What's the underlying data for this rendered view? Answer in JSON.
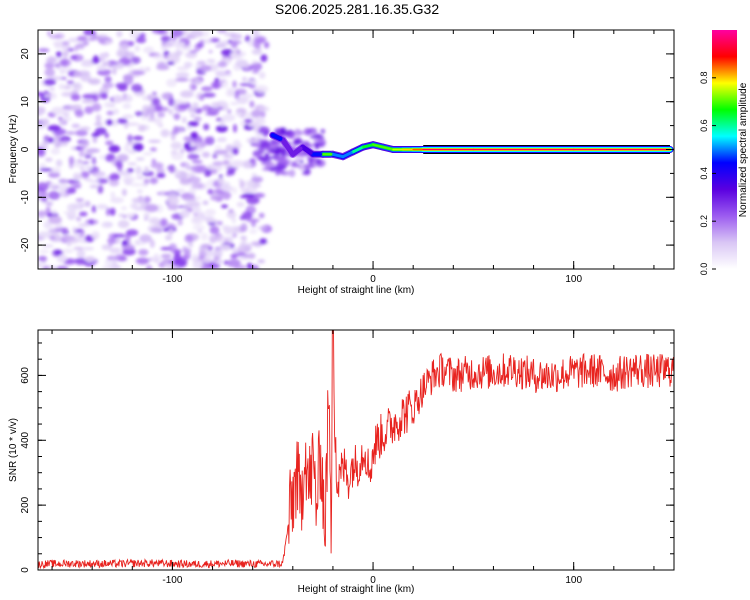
{
  "page": {
    "title": "S206.2025.281.16.35.G32"
  },
  "colors": {
    "snr_line": "#e8231f",
    "axis": "#000000",
    "colormap": [
      "#ffffff",
      "#d9c6f5",
      "#9c5cf0",
      "#5a00e0",
      "#0000ff",
      "#00ffff",
      "#00ff00",
      "#ffff00",
      "#ff0000",
      "#ff00a0"
    ]
  },
  "chart_data": [
    {
      "type": "heatmap",
      "title": "S206.2025.281.16.35.G32",
      "xlabel": "Height of straight line (km)",
      "ylabel": "Frequency (Hz)",
      "xlim": [
        -167,
        150
      ],
      "ylim": [
        -25,
        25
      ],
      "xticks": [
        -100,
        0,
        100
      ],
      "yticks": [
        -20,
        -10,
        0,
        10,
        20
      ],
      "x_tick_labels": [
        "-100",
        "0",
        "100"
      ],
      "y_tick_labels": [
        "-20",
        "-10",
        "0",
        "10",
        "20"
      ],
      "noise_region_km": [
        -167,
        -53
      ],
      "ridge": {
        "description_points_km_hz_amp": [
          [
            -50,
            3,
            0.55
          ],
          [
            -45,
            2,
            0.45
          ],
          [
            -40,
            -1,
            0.3
          ],
          [
            -35,
            0.5,
            0.35
          ],
          [
            -30,
            -1,
            0.45
          ],
          [
            -25,
            -1,
            0.75
          ],
          [
            -20,
            -1,
            0.7
          ],
          [
            -15,
            -1.5,
            0.5
          ],
          [
            -10,
            -0.5,
            0.6
          ],
          [
            -5,
            0.5,
            0.65
          ],
          [
            0,
            1,
            0.85
          ],
          [
            5,
            0.5,
            0.7
          ],
          [
            10,
            0,
            0.75
          ],
          [
            15,
            0,
            0.8
          ],
          [
            20,
            0,
            0.85
          ],
          [
            25,
            0,
            0.95
          ],
          [
            50,
            0,
            0.95
          ],
          [
            100,
            0,
            0.95
          ],
          [
            148,
            0,
            0.95
          ]
        ]
      },
      "colorbar": {
        "label": "Normalized spectral amplitude",
        "range": [
          0,
          1
        ],
        "ticks": [
          0.0,
          0.2,
          0.4,
          0.6,
          0.8
        ],
        "tick_labels": [
          "0.0",
          "0.2",
          "0.4",
          "0.6",
          "0.8"
        ]
      }
    },
    {
      "type": "line",
      "title": "",
      "xlabel": "Height of straight line (km)",
      "ylabel": "SNR (10 * v/v)",
      "xlim": [
        -167,
        150
      ],
      "ylim": [
        0,
        740
      ],
      "xticks": [
        -100,
        0,
        100
      ],
      "yticks": [
        0,
        200,
        400,
        600
      ],
      "x_tick_labels": [
        "-100",
        "0",
        "100"
      ],
      "y_tick_labels": [
        "0",
        "200",
        "400",
        "600"
      ],
      "series": [
        {
          "name": "SNR",
          "x": [
            -167,
            -150,
            -130,
            -110,
            -90,
            -70,
            -55,
            -45,
            -42,
            -40,
            -38,
            -36,
            -34,
            -32,
            -30,
            -28,
            -26,
            -24,
            -22,
            -21,
            -20,
            -18,
            -16,
            -14,
            -12,
            -10,
            -8,
            -6,
            -4,
            -2,
            0,
            2,
            5,
            10,
            15,
            20,
            25,
            30,
            35,
            40,
            50,
            60,
            70,
            80,
            90,
            100,
            110,
            120,
            130,
            140,
            150
          ],
          "values": [
            18,
            20,
            19,
            21,
            18,
            20,
            18,
            20,
            150,
            220,
            300,
            180,
            400,
            250,
            330,
            200,
            380,
            120,
            560,
            60,
            740,
            250,
            300,
            320,
            280,
            330,
            320,
            350,
            380,
            300,
            360,
            400,
            420,
            450,
            480,
            500,
            560,
            600,
            620,
            600,
            610,
            610,
            620,
            600,
            600,
            610,
            615,
            600,
            620,
            610,
            620
          ]
        }
      ]
    }
  ]
}
